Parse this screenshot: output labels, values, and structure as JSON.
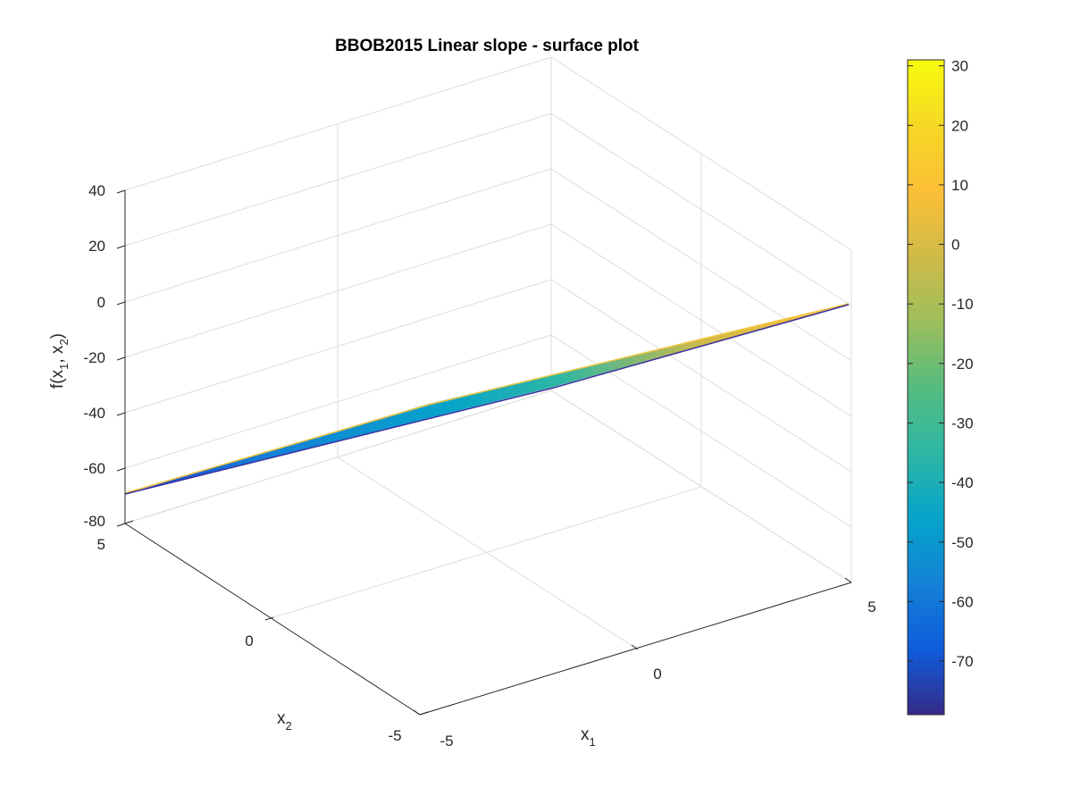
{
  "chart_data": {
    "type": "surface",
    "title": "BBOB2015 Linear slope - surface plot",
    "xlabel": {
      "base": "x",
      "sub": "1"
    },
    "ylabel": {
      "base": "x",
      "sub": "2"
    },
    "zlabel": {
      "pre": "f(x",
      "sub1": "1",
      "mid": ", x",
      "sub2": "2",
      "post": ")"
    },
    "x_ticks": [
      "-5",
      "0",
      "5"
    ],
    "y_ticks": [
      "-5",
      "0",
      "5"
    ],
    "z_ticks": [
      "40",
      "20",
      "0",
      "-20",
      "-40",
      "-60",
      "-80"
    ],
    "xlim": [
      -5,
      5
    ],
    "ylim": [
      -5,
      5
    ],
    "zlim": [
      -80,
      40
    ],
    "grid": true,
    "surface": {
      "corners": [
        {
          "x1": -5,
          "x2": 5,
          "f": -70
        },
        {
          "x1": -5,
          "x2": -5,
          "f": -79
        },
        {
          "x1": 5,
          "x2": -5,
          "f": 31
        },
        {
          "x1": 5,
          "x2": 5,
          "f": 22
        }
      ]
    },
    "colorbar": {
      "colormap": "parula",
      "ticks": [
        "30",
        "20",
        "10",
        "0",
        "-10",
        "-20",
        "-30",
        "-40",
        "-50",
        "-60",
        "-70"
      ],
      "range": [
        -79,
        31
      ]
    }
  }
}
